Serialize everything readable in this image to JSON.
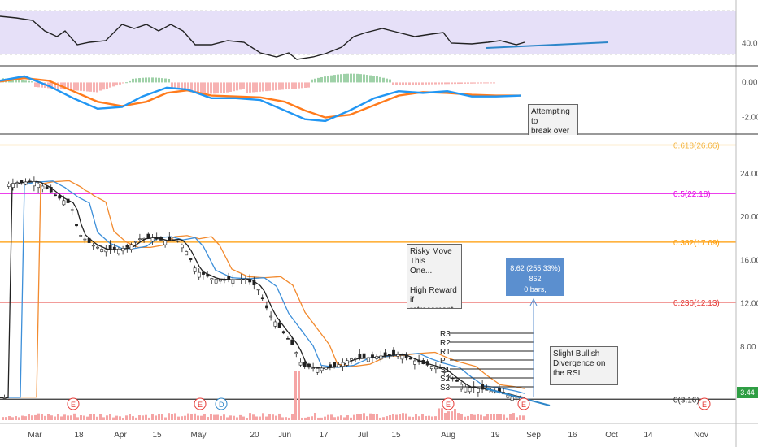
{
  "chart_data": [
    {
      "type": "line",
      "name": "rsi_panel",
      "y_ticks": [
        "40.00"
      ],
      "upper_band": 70,
      "lower_band": 30,
      "ylim": [
        20,
        80
      ]
    },
    {
      "type": "line",
      "name": "macd_panel",
      "y_ticks": [
        "0.00",
        "-2.00"
      ],
      "ylim": [
        -2.9,
        0.9
      ]
    },
    {
      "type": "candlestick",
      "name": "price_panel",
      "y_ticks": [
        "24.00",
        "20.00",
        "16.00",
        "12.00",
        "8.00",
        "4.00"
      ],
      "ylim": [
        1.0,
        27.6
      ],
      "x_ticks": [
        "Mar",
        "18",
        "Apr",
        "15",
        "May",
        "20",
        "Jun",
        "17",
        "Jul",
        "15",
        "Aug",
        "19",
        "Sep",
        "16",
        "Oct",
        "14",
        "Nov"
      ],
      "fib_levels": [
        {
          "label": "0.618(26.66)",
          "value": 26.66,
          "color": "#f5b642"
        },
        {
          "label": "0.5(22.18)",
          "value": 22.18,
          "color": "#e600e6"
        },
        {
          "label": "0.382(17.69)",
          "value": 17.69,
          "color": "#ff9a00"
        },
        {
          "label": "0.236(12.13)",
          "value": 12.13,
          "color": "#e53935"
        },
        {
          "label": "0(3.16)",
          "value": 3.16,
          "color": "#333333"
        }
      ],
      "pivot_labels": [
        "R3",
        "R2",
        "R1",
        "P",
        "S1",
        "S2",
        "S3"
      ],
      "event_markers": [
        "E",
        "E",
        "D",
        "E",
        "E",
        "E"
      ],
      "last_price": "3.44"
    }
  ],
  "annotations": {
    "macd_note": "Attempting to\nbreak over the\nbaseline",
    "risky_note": "Risky Move This\nOne...\n\nHigh Reward if\nretracement up.",
    "divergence_note": "Slight Bullish\nDivergence on\nthe RSI",
    "measure_line1": "8.62 (255.33%) 862",
    "measure_line2": "0 bars,"
  },
  "colors": {
    "rsi_band": "#e6e0f8",
    "rsi_line": "#222222",
    "trend_line": "#2d86c9",
    "macd_line": "#2196f3",
    "signal_line": "#ff7b1c",
    "hist_green": "#3f8f4f",
    "hist_red": "#e53935",
    "candle_up": "#ffffff",
    "candle_down": "#222222",
    "ema_fast": "#222222",
    "ema_mid": "#3d8fd9",
    "ema_slow": "#f28a2e",
    "volume": "#f5a5a5"
  }
}
